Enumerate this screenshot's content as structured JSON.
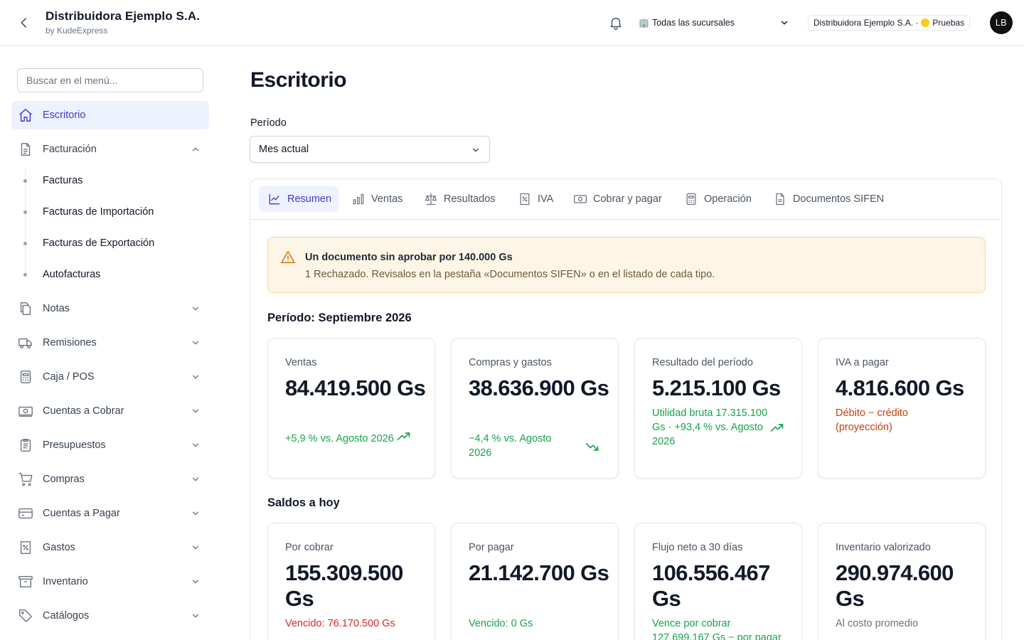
{
  "header": {
    "company_name": "Distribuidora Ejemplo S.A.",
    "company_sub": "by KudeExpress",
    "branch_icon": "🏢",
    "branch_selected": "Todas las sucursales",
    "env_company": "Distribuidora Ejemplo S.A. ·",
    "env_label": "Pruebas",
    "env_color": "#facc15",
    "avatar_initials": "LB"
  },
  "sidebar": {
    "search_placeholder": "Buscar en el menú...",
    "items": [
      {
        "label": "Escritorio",
        "icon": "home-icon",
        "active": true
      },
      {
        "label": "Facturación",
        "icon": "document-icon",
        "expanded": true
      },
      {
        "label": "Notas",
        "icon": "copy-icon"
      },
      {
        "label": "Remisiones",
        "icon": "truck-icon"
      },
      {
        "label": "Caja / POS",
        "icon": "calculator-icon"
      },
      {
        "label": "Cuentas a Cobrar",
        "icon": "cash-icon"
      },
      {
        "label": "Presupuestos",
        "icon": "clipboard-icon"
      },
      {
        "label": "Compras",
        "icon": "cart-icon"
      },
      {
        "label": "Cuentas a Pagar",
        "icon": "credit-card-icon"
      },
      {
        "label": "Gastos",
        "icon": "receipt-percent-icon"
      },
      {
        "label": "Inventario",
        "icon": "archive-box-icon"
      },
      {
        "label": "Catálogos",
        "icon": "tag-icon"
      }
    ],
    "sub_items": [
      "Facturas",
      "Facturas de Importación",
      "Facturas de Exportación",
      "Autofacturas"
    ]
  },
  "main": {
    "title": "Escritorio",
    "period_label": "Período",
    "period_value": "Mes actual",
    "tabs": [
      {
        "label": "Resumen",
        "icon": "chart-line-icon",
        "active": true
      },
      {
        "label": "Ventas",
        "icon": "bar-chart-icon"
      },
      {
        "label": "Resultados",
        "icon": "scale-icon"
      },
      {
        "label": "IVA",
        "icon": "receipt-percent-icon"
      },
      {
        "label": "Cobrar y pagar",
        "icon": "cash-icon"
      },
      {
        "label": "Operación",
        "icon": "calculator-icon"
      },
      {
        "label": "Documentos SIFEN",
        "icon": "document-icon"
      }
    ],
    "alert": {
      "title": "Un documento sin aprobar por 140.000 Gs",
      "text": "1 Rechazado. Revisalos en la pestaña «Documentos SIFEN» o en el listado de cada tipo."
    },
    "period_section_title": "Período: Septiembre 2026",
    "period_cards": [
      {
        "label": "Ventas",
        "value": "84.419.500 Gs",
        "note": "+5,9 % vs. Agosto 2026",
        "tone": "green",
        "trend": "up"
      },
      {
        "label": "Compras y gastos",
        "value": "38.636.900 Gs",
        "note": "−4,4 % vs. Agosto 2026",
        "tone": "green",
        "trend": "down"
      },
      {
        "label": "Resultado del período",
        "value": "5.215.100 Gs",
        "note": "Utilidad bruta 17.315.100 Gs · +93,4 % vs. Agosto 2026",
        "tone": "green",
        "trend": "up"
      },
      {
        "label": "IVA a pagar",
        "value": "4.816.600 Gs",
        "note": "Débito − crédito (proyección)",
        "tone": "orange",
        "trend": ""
      }
    ],
    "balances_section_title": "Saldos a hoy",
    "balance_cards": [
      {
        "label": "Por cobrar",
        "value": "155.309.500 Gs",
        "note": "Vencido: 76.170.500 Gs",
        "tone": "red"
      },
      {
        "label": "Por pagar",
        "value": "21.142.700 Gs",
        "note": "Vencido: 0 Gs",
        "tone": "green"
      },
      {
        "label": "Flujo neto a 30 días",
        "value": "106.556.467 Gs",
        "note": "Vence por cobrar 127.699.167 Gs − por pagar",
        "tone": "green"
      },
      {
        "label": "Inventario valorizado",
        "value": "290.974.600 Gs",
        "note": "Al costo promedio",
        "tone": "gray"
      }
    ]
  }
}
